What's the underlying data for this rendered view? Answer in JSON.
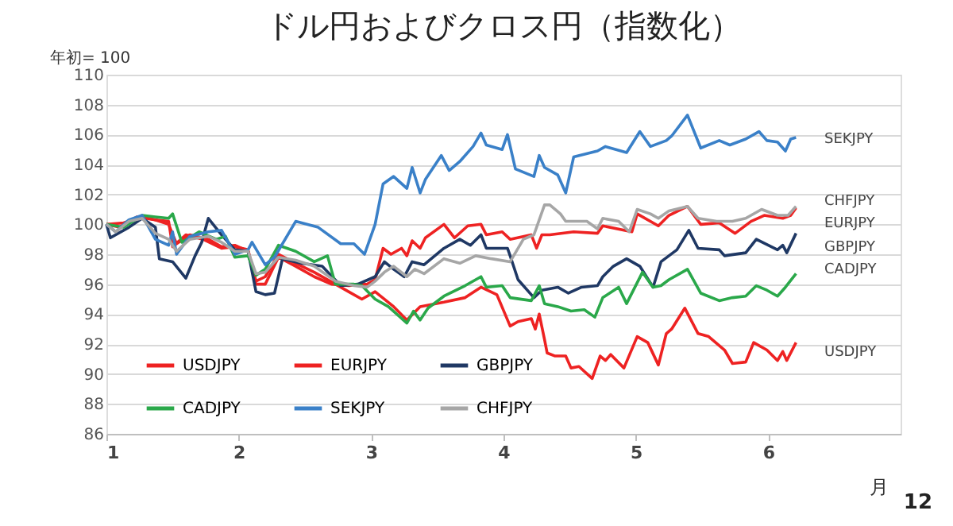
{
  "chart_data": {
    "type": "line",
    "title": "ドル円およびクロス円（指数化）",
    "ylabel": "年初= 100",
    "xlabel": "月",
    "xlim": [
      1,
      7
    ],
    "xticks": [
      1,
      2,
      3,
      4,
      5,
      6
    ],
    "ylim": [
      86,
      110
    ],
    "yticks": [
      86,
      88,
      90,
      92,
      94,
      96,
      98,
      100,
      102,
      104,
      106,
      108,
      110
    ],
    "grid": "y",
    "legend": "bottom left",
    "marker": "none",
    "line_style": "solid",
    "series": [
      {
        "name": "USDJPY",
        "color": "#ee2222",
        "x": [
          1,
          1.1,
          1.23,
          1.37,
          1.47,
          1.5,
          1.6,
          1.73,
          1.87,
          1.97,
          2.07,
          2.13,
          2.2,
          2.3,
          2.43,
          2.57,
          2.73,
          2.83,
          2.93,
          3.03,
          3.17,
          3.27,
          3.37,
          3.55,
          3.71,
          3.83,
          3.95,
          4.05,
          4.11,
          4.21,
          4.24,
          4.27,
          4.31,
          4.33,
          4.39,
          4.47,
          4.51,
          4.57,
          4.67,
          4.73,
          4.77,
          4.81,
          4.91,
          5.01,
          5.09,
          5.17,
          5.23,
          5.27,
          5.37,
          5.47,
          5.55,
          5.67,
          5.73,
          5.83,
          5.89,
          5.99,
          6.07,
          6.11,
          6.14,
          6.21
        ],
        "values": [
          100,
          99.8,
          100.5,
          100.3,
          100.2,
          98.5,
          99.3,
          99,
          98.4,
          98.5,
          98.3,
          96.2,
          96.5,
          98,
          97.4,
          96.8,
          96,
          95.5,
          95,
          95.5,
          94.5,
          93.6,
          94.5,
          94.8,
          95.1,
          95.8,
          95.3,
          93.2,
          93.5,
          93.7,
          93,
          94,
          92.3,
          91.4,
          91.2,
          91.2,
          90.4,
          90.5,
          89.7,
          91.2,
          90.9,
          91.3,
          90.4,
          92.5,
          92.1,
          90.6,
          92.7,
          93,
          94.4,
          92.7,
          92.5,
          91.6,
          90.7,
          90.8,
          92.1,
          91.6,
          90.9,
          91.5,
          90.9,
          92.1
        ]
      },
      {
        "name": "EURJPY",
        "color": "#ee2222",
        "x": [
          1,
          1.13,
          1.27,
          1.37,
          1.47,
          1.53,
          1.63,
          1.77,
          1.87,
          1.97,
          2.07,
          2.13,
          2.2,
          2.3,
          2.43,
          2.57,
          2.7,
          2.83,
          2.97,
          3.03,
          3.09,
          3.15,
          3.23,
          3.27,
          3.31,
          3.37,
          3.41,
          3.55,
          3.63,
          3.73,
          3.83,
          3.87,
          3.99,
          4.05,
          4.21,
          4.25,
          4.29,
          4.35,
          4.53,
          4.71,
          4.75,
          4.97,
          5.01,
          5.17,
          5.25,
          5.39,
          5.49,
          5.63,
          5.75,
          5.87,
          5.97,
          6.11,
          6.17,
          6.21
        ],
        "values": [
          100,
          100.1,
          100.5,
          100.3,
          100,
          98.7,
          99.3,
          99,
          98.5,
          98.6,
          98.2,
          96,
          96,
          97.8,
          97.2,
          96.5,
          96,
          95.9,
          96,
          96.3,
          98.4,
          98,
          98.4,
          97.9,
          98.9,
          98.4,
          99.1,
          100,
          99.1,
          99.9,
          100,
          99.3,
          99.5,
          99,
          99.3,
          98.4,
          99.3,
          99.3,
          99.5,
          99.4,
          99.9,
          99.5,
          100.7,
          99.9,
          100.6,
          101.2,
          100,
          100.1,
          99.4,
          100.2,
          100.6,
          100.4,
          100.6,
          101.1
        ]
      },
      {
        "name": "GBPJPY",
        "color": "#1f3864",
        "x": [
          1,
          1.03,
          1.17,
          1.27,
          1.37,
          1.4,
          1.5,
          1.6,
          1.67,
          1.72,
          1.77,
          1.87,
          1.97,
          2.07,
          2.13,
          2.2,
          2.27,
          2.33,
          2.47,
          2.63,
          2.77,
          2.9,
          3.03,
          3.1,
          3.17,
          3.25,
          3.31,
          3.4,
          3.55,
          3.67,
          3.75,
          3.83,
          3.87,
          4.03,
          4.05,
          4.11,
          4.23,
          4.29,
          4.41,
          4.49,
          4.59,
          4.71,
          4.75,
          4.83,
          4.93,
          5.03,
          5.13,
          5.19,
          5.31,
          5.4,
          5.47,
          5.63,
          5.67,
          5.83,
          5.91,
          6.07,
          6.11,
          6.14,
          6.21
        ],
        "values": [
          100,
          99.1,
          99.8,
          100.4,
          99.8,
          97.7,
          97.5,
          96.4,
          97.9,
          98.8,
          100.4,
          99.3,
          98.3,
          98.2,
          95.5,
          95.3,
          95.4,
          97.7,
          97.4,
          97.2,
          95.9,
          96,
          96.5,
          97.5,
          97,
          96.5,
          97.5,
          97.3,
          98.4,
          99,
          98.6,
          99.3,
          98.4,
          98.4,
          97.9,
          96.3,
          95.1,
          95.6,
          95.8,
          95.4,
          95.8,
          95.9,
          96.5,
          97.2,
          97.7,
          97.2,
          95.8,
          97.5,
          98.3,
          99.6,
          98.4,
          98.3,
          97.9,
          98.1,
          99,
          98.3,
          98.6,
          98.1,
          99.4
        ]
      },
      {
        "name": "CADJPY",
        "color": "#2aa84a",
        "x": [
          1,
          1.13,
          1.27,
          1.37,
          1.47,
          1.5,
          1.57,
          1.7,
          1.83,
          1.9,
          1.97,
          2.07,
          2.13,
          2.2,
          2.3,
          2.43,
          2.57,
          2.67,
          2.73,
          2.87,
          2.93,
          3.03,
          3.13,
          3.27,
          3.32,
          3.37,
          3.43,
          3.55,
          3.71,
          3.83,
          3.87,
          3.99,
          4.05,
          4.21,
          4.27,
          4.31,
          4.41,
          4.51,
          4.61,
          4.69,
          4.75,
          4.87,
          4.93,
          5.05,
          5.13,
          5.19,
          5.25,
          5.39,
          5.49,
          5.63,
          5.73,
          5.83,
          5.91,
          5.99,
          6.07,
          6.13,
          6.21
        ],
        "values": [
          100,
          99.8,
          100.6,
          100.5,
          100.4,
          100.7,
          98.8,
          99.5,
          99,
          99.2,
          97.8,
          97.9,
          96.6,
          97,
          98.6,
          98.2,
          97.5,
          97.9,
          96,
          96,
          95.9,
          95,
          94.5,
          93.4,
          94.2,
          93.6,
          94.4,
          95.2,
          95.9,
          96.5,
          95.8,
          95.9,
          95.1,
          94.9,
          95.9,
          94.7,
          94.5,
          94.2,
          94.3,
          93.8,
          95.1,
          95.8,
          94.7,
          96.8,
          95.8,
          95.9,
          96.3,
          97,
          95.4,
          94.9,
          95.1,
          95.2,
          95.9,
          95.6,
          95.2,
          95.8,
          96.7
        ]
      },
      {
        "name": "SEKJPY",
        "color": "#3a80c8",
        "x": [
          1,
          1.07,
          1.17,
          1.27,
          1.37,
          1.47,
          1.5,
          1.53,
          1.63,
          1.77,
          1.87,
          1.97,
          2.07,
          2.1,
          2.2,
          2.27,
          2.43,
          2.6,
          2.77,
          2.87,
          2.95,
          3.03,
          3.09,
          3.17,
          3.27,
          3.31,
          3.37,
          3.41,
          3.53,
          3.59,
          3.67,
          3.77,
          3.83,
          3.87,
          3.99,
          4.03,
          4.09,
          4.23,
          4.27,
          4.31,
          4.41,
          4.47,
          4.53,
          4.71,
          4.77,
          4.93,
          5.03,
          5.11,
          5.23,
          5.27,
          5.39,
          5.49,
          5.63,
          5.71,
          5.83,
          5.93,
          5.99,
          6.07,
          6.13,
          6.17,
          6.21
        ],
        "values": [
          100,
          99.5,
          100.3,
          100.6,
          99,
          98.6,
          99.5,
          98,
          99.2,
          99.5,
          99.6,
          98,
          98.3,
          98.8,
          97.3,
          97.8,
          100.2,
          99.8,
          98.7,
          98.7,
          98,
          100,
          102.7,
          103.2,
          102.4,
          103.8,
          102.1,
          103,
          104.6,
          103.6,
          104.2,
          105.2,
          106.1,
          105.3,
          105,
          106,
          103.7,
          103.2,
          104.6,
          103.8,
          103.3,
          102.1,
          104.5,
          104.9,
          105.2,
          104.8,
          106.2,
          105.2,
          105.6,
          105.9,
          107.3,
          105.1,
          105.6,
          105.3,
          105.7,
          106.2,
          105.6,
          105.5,
          104.9,
          105.7,
          105.8
        ]
      },
      {
        "name": "CHFJPY",
        "color": "#a6a6a6",
        "x": [
          1,
          1.07,
          1.17,
          1.27,
          1.37,
          1.47,
          1.53,
          1.63,
          1.77,
          1.87,
          1.97,
          2.07,
          2.13,
          2.2,
          2.3,
          2.43,
          2.57,
          2.73,
          2.87,
          2.97,
          3.03,
          3.1,
          3.17,
          3.27,
          3.33,
          3.4,
          3.55,
          3.67,
          3.79,
          3.91,
          4.05,
          4.15,
          4.23,
          4.31,
          4.35,
          4.43,
          4.47,
          4.63,
          4.71,
          4.75,
          4.87,
          4.95,
          5.01,
          5.11,
          5.17,
          5.25,
          5.39,
          5.47,
          5.61,
          5.73,
          5.83,
          5.95,
          6.07,
          6.15,
          6.21
        ],
        "values": [
          100,
          99.5,
          100.2,
          100.4,
          99.4,
          99,
          98.2,
          99,
          99.2,
          98.8,
          98.2,
          98.2,
          96.7,
          96.8,
          97.8,
          97.6,
          97.2,
          96.2,
          95.9,
          95.8,
          96.2,
          96.8,
          97.2,
          96.5,
          97,
          96.7,
          97.7,
          97.4,
          97.9,
          97.7,
          97.5,
          99,
          99.3,
          101.3,
          101.3,
          100.7,
          100.2,
          100.2,
          99.7,
          100.4,
          100.2,
          99.5,
          101,
          100.7,
          100.4,
          100.9,
          101.2,
          100.4,
          100.2,
          100.2,
          100.4,
          101,
          100.6,
          100.6,
          101.2
        ]
      }
    ],
    "annotations": [
      "SEKJPY",
      "CHFJPY",
      "EURJPY",
      "GBPJPY",
      "CADJPY",
      "USDJPY",
      "12"
    ]
  }
}
